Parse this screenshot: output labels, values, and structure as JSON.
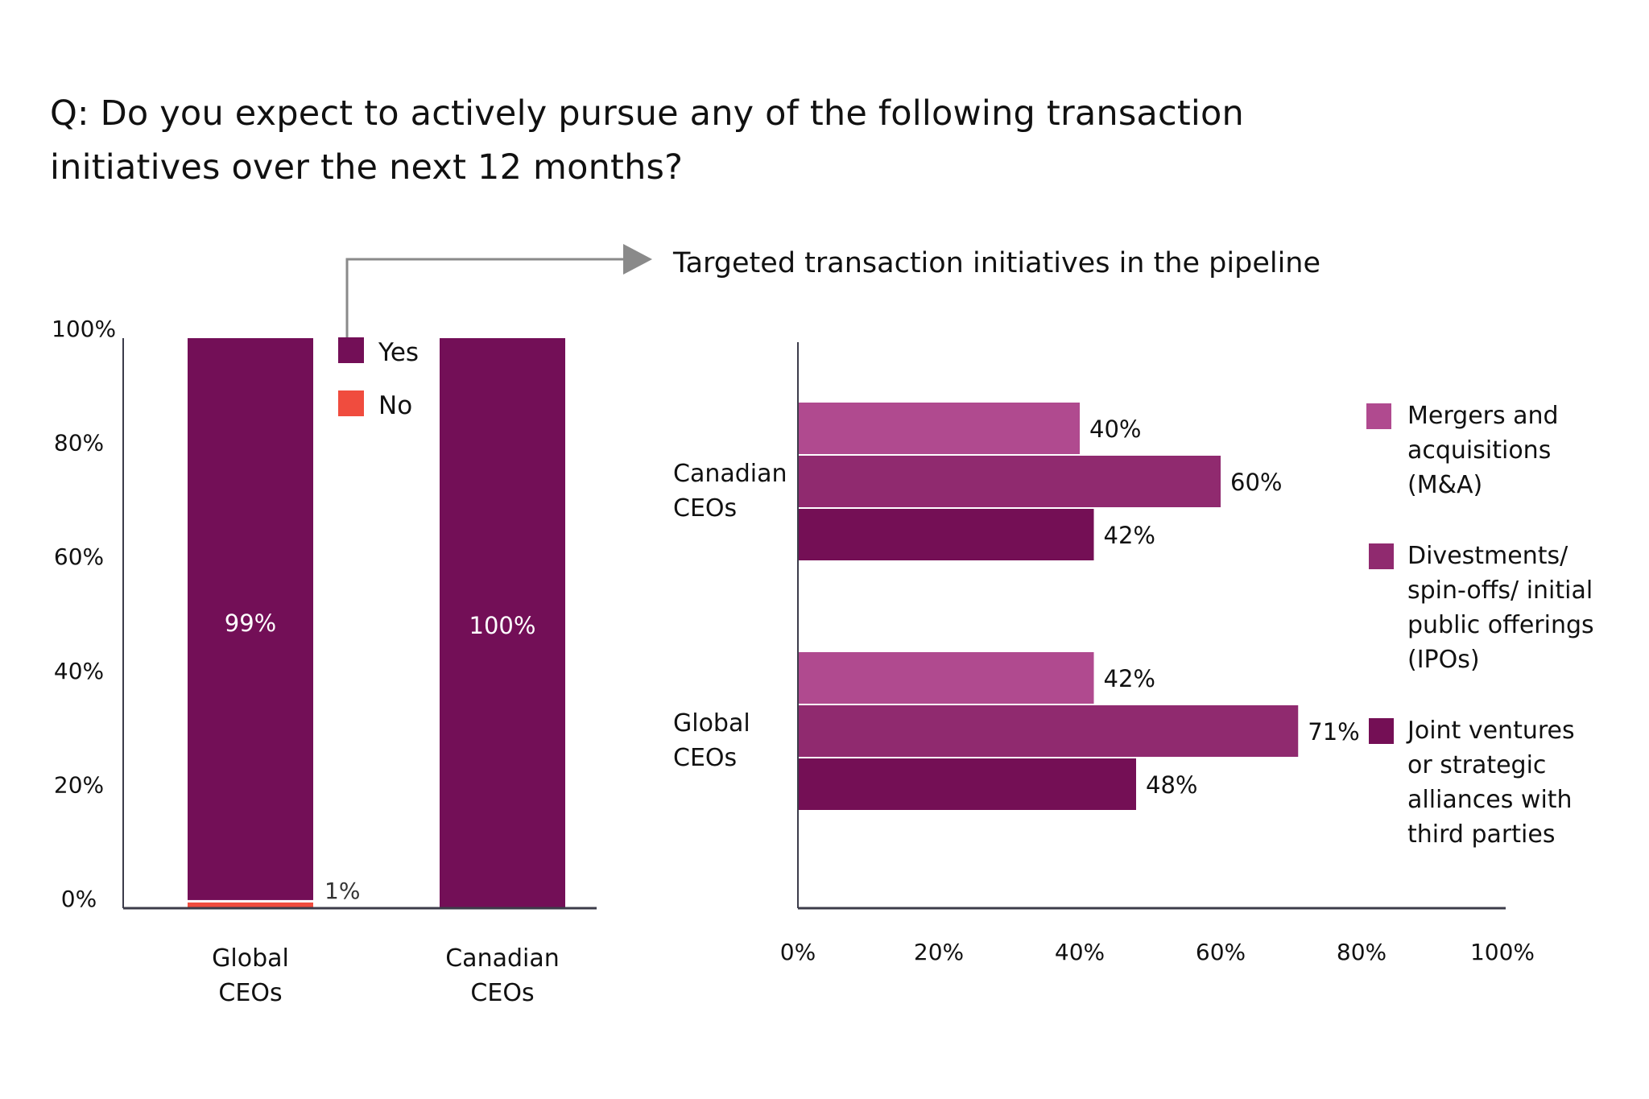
{
  "title": {
    "line1": "Q: Do you expect to actively pursue any of the following transaction",
    "line2": "initiatives over the next 12 months?"
  },
  "colors": {
    "yes": "#730F57",
    "no": "#F04C3E",
    "ma": "#B04A8F",
    "divest": "#902A6F",
    "jv": "#740F55",
    "axis": "#3C3C4A",
    "connector": "#8A8A8A"
  },
  "chart_data": [
    {
      "type": "bar",
      "stacked": true,
      "title": "",
      "categories": [
        [
          "Global",
          "CEOs"
        ],
        [
          "Canadian",
          "CEOs"
        ]
      ],
      "series": [
        {
          "name": "No",
          "values": [
            1,
            0
          ],
          "labels": [
            "1%",
            ""
          ]
        },
        {
          "name": "Yes",
          "values": [
            99,
            100
          ],
          "labels": [
            "99%",
            "100%"
          ]
        }
      ],
      "yticks": [
        "0%",
        "20%",
        "40%",
        "60%",
        "80%",
        "100%"
      ],
      "ylim": [
        0,
        100
      ],
      "legend": [
        "Yes",
        "No"
      ],
      "legend_position": "top-right of first bar"
    },
    {
      "type": "bar",
      "orientation": "horizontal",
      "title": "Targeted transaction initiatives in the pipeline",
      "categories": [
        [
          "Canadian",
          "CEOs"
        ],
        [
          "Global",
          "CEOs"
        ]
      ],
      "series": [
        {
          "name": "Mergers and acquisitions (M&A)",
          "legend_lines": [
            "Mergers and",
            "acquisitions",
            "(M&A)"
          ],
          "values": [
            40,
            42
          ]
        },
        {
          "name": "Divestments/ spin-offs/ initial public offerings (IPOs)",
          "legend_lines": [
            "Divestments/",
            "spin-offs/ initial",
            "public offerings",
            "(IPOs)"
          ],
          "values": [
            60,
            71
          ]
        },
        {
          "name": "Joint ventures or strategic alliances with third parties",
          "legend_lines": [
            "Joint ventures",
            "or strategic",
            "alliances with",
            "third parties"
          ],
          "values": [
            42,
            48
          ]
        }
      ],
      "xticks": [
        "0%",
        "20%",
        "40%",
        "60%",
        "80%",
        "100%"
      ],
      "xlim": [
        0,
        100
      ],
      "legend_position": "right"
    }
  ]
}
